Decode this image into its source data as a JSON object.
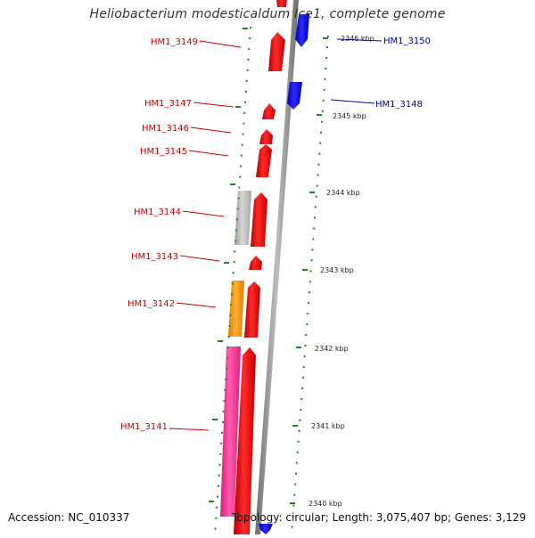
{
  "title": "Heliobacterium modesticaldum Ice1, complete genome",
  "accession": "Accession: NC_010337",
  "topology": "Topology: circular; Length: 3,075,407 bp; Genes: 3,129",
  "colors": {
    "forward_cds": "#ff0000",
    "reverse_cds": "#0000ff",
    "gray_feature": "#b8b8b8",
    "orange_feature": "#ff9900",
    "pink_feature": "#ff3399",
    "backbone": "#8c8c8c",
    "tick": "#1a8a1a",
    "label_forward": "#cc0000",
    "label_reverse": "#0000aa"
  },
  "gene_labels": [
    {
      "id": "HM1_3149",
      "strand": "forward"
    },
    {
      "id": "HM1_3147",
      "strand": "forward"
    },
    {
      "id": "HM1_3146",
      "strand": "forward"
    },
    {
      "id": "HM1_3145",
      "strand": "forward"
    },
    {
      "id": "HM1_3144",
      "strand": "forward"
    },
    {
      "id": "HM1_3143",
      "strand": "forward"
    },
    {
      "id": "HM1_3142",
      "strand": "forward"
    },
    {
      "id": "HM1_3141",
      "strand": "forward"
    },
    {
      "id": "HM1_3150",
      "strand": "reverse"
    },
    {
      "id": "HM1_3148",
      "strand": "reverse"
    }
  ],
  "scale_labels": [
    "2346 kbp",
    "2345 kbp",
    "2344 kbp",
    "2343 kbp",
    "2342 kbp",
    "2341 kbp",
    "2340 kbp"
  ]
}
